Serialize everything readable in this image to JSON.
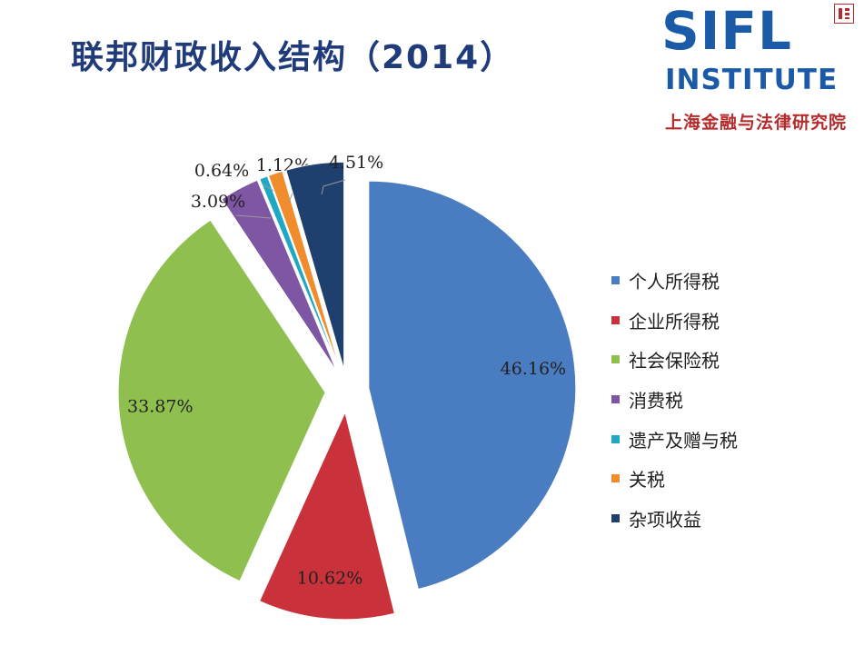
{
  "page": {
    "title": "联邦财政收入结构（2014）"
  },
  "logo": {
    "main": "SIFL",
    "sub": "INSTITUTE",
    "cn": "上海金融与法律研究院"
  },
  "chart_data": {
    "type": "pie",
    "title": "联邦财政收入结构（2014）",
    "categories": [
      "个人所得税",
      "企业所得税",
      "社会保险税",
      "消费税",
      "遗产及赠与税",
      "关税",
      "杂项收益"
    ],
    "values": [
      46.16,
      10.62,
      33.87,
      3.09,
      0.64,
      1.12,
      4.51
    ],
    "labels": [
      "46.16%",
      "10.62%",
      "33.87%",
      "3.09%",
      "0.64%",
      "1.12%",
      "4.51%"
    ],
    "colors": [
      "#4a7cc1",
      "#c9323b",
      "#8fbf4e",
      "#7e56a3",
      "#1fa8c4",
      "#f08c2c",
      "#1f3f6e"
    ],
    "legend_position": "right",
    "exploded": true
  }
}
